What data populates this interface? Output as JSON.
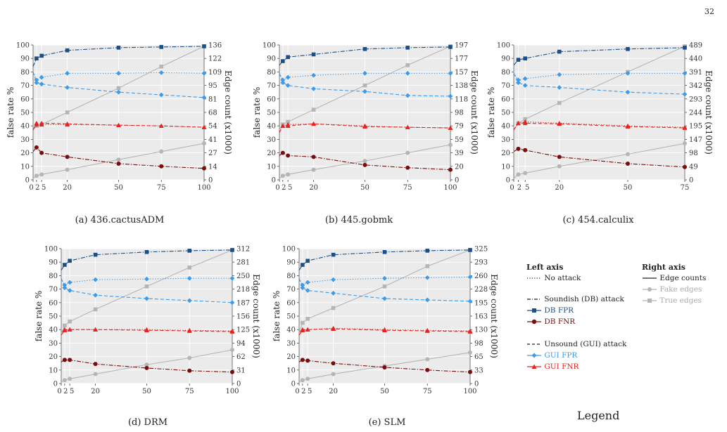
{
  "page_number": "32",
  "chart_data": [
    {
      "type": "line",
      "caption": "(a) 436.cactusADM",
      "x": [
        0,
        2,
        5,
        20,
        50,
        75,
        100
      ],
      "x_ticks": [
        "0",
        "2",
        "5",
        "20",
        "50",
        "75",
        "100"
      ],
      "xlim": [
        0,
        100
      ],
      "ylabel": "false rate %",
      "ylim": [
        0,
        100
      ],
      "y_ticks": [
        0,
        10,
        20,
        30,
        40,
        50,
        60,
        70,
        80,
        90,
        100
      ],
      "y2label": "Edge count (x1000)",
      "y2_max": 136,
      "y2_ticks": [
        "0",
        "14",
        "27",
        "41",
        "54",
        "68",
        "81",
        "95",
        "109",
        "122",
        "136"
      ],
      "series": [
        {
          "name": "DB FPR",
          "values": [
            84,
            90,
            92,
            96,
            98,
            98.5,
            99
          ]
        },
        {
          "name": "DB FNR",
          "values": [
            21,
            24,
            20,
            17,
            12,
            10,
            8.5
          ]
        },
        {
          "name": "GUI FPR",
          "values": [
            80,
            72,
            71,
            68.5,
            65,
            63,
            61
          ]
        },
        {
          "name": "GUI FNR",
          "values": [
            37,
            42,
            42,
            41.5,
            40.5,
            40,
            39
          ]
        },
        {
          "name": "No attack FPR",
          "values": [
            80,
            74,
            76,
            79,
            79,
            79.5,
            79
          ]
        },
        {
          "name": "No attack FNR",
          "values": [
            37,
            41,
            41,
            41,
            40.5,
            40,
            39
          ]
        },
        {
          "name": "Fake edges",
          "values": [
            1,
            3,
            4,
            7.5,
            15,
            21,
            27
          ]
        },
        {
          "name": "True edges",
          "values": [
            37,
            40,
            41,
            50,
            68,
            84,
            99
          ]
        }
      ]
    },
    {
      "type": "line",
      "caption": "(b) 445.gobmk",
      "x": [
        0,
        2,
        5,
        20,
        50,
        75,
        100
      ],
      "x_ticks": [
        "0",
        "2",
        "5",
        "20",
        "50",
        "75",
        "100"
      ],
      "xlim": [
        0,
        100
      ],
      "ylabel": "false rate %",
      "ylim": [
        0,
        100
      ],
      "y_ticks": [
        0,
        10,
        20,
        30,
        40,
        50,
        60,
        70,
        80,
        90,
        100
      ],
      "y2label": "Edge count (x1000)",
      "y2_max": 197,
      "y2_ticks": [
        "0",
        "20",
        "39",
        "59",
        "79",
        "98",
        "118",
        "138",
        "157",
        "177",
        "197"
      ],
      "series": [
        {
          "name": "DB FPR",
          "values": [
            85,
            88,
            91,
            93,
            97,
            98,
            98.5
          ]
        },
        {
          "name": "DB FNR",
          "values": [
            18,
            20,
            18,
            17,
            11,
            9,
            7.5
          ]
        },
        {
          "name": "GUI FPR",
          "values": [
            79,
            72,
            70,
            67.5,
            65.5,
            62.5,
            62
          ]
        },
        {
          "name": "GUI FNR",
          "values": [
            35,
            40,
            40,
            41.5,
            39.5,
            39,
            38.5
          ]
        },
        {
          "name": "No attack FPR",
          "values": [
            79,
            74,
            76,
            77.5,
            79,
            79,
            79
          ]
        },
        {
          "name": "No attack FNR",
          "values": [
            35,
            40,
            41,
            41.5,
            40,
            39,
            38.5
          ]
        },
        {
          "name": "Fake edges",
          "values": [
            1,
            3,
            4,
            7.5,
            14,
            20,
            26
          ]
        },
        {
          "name": "True edges",
          "values": [
            37,
            41,
            43,
            52,
            70,
            85,
            99
          ]
        }
      ]
    },
    {
      "type": "line",
      "caption": "(c) 454.calculix",
      "x": [
        0,
        2,
        5,
        20,
        50,
        75
      ],
      "x_ticks": [
        "0",
        "2",
        "5",
        "20",
        "50",
        "75"
      ],
      "xlim": [
        0,
        75
      ],
      "ylabel": "false rate %",
      "ylim": [
        0,
        100
      ],
      "y_ticks": [
        0,
        10,
        20,
        30,
        40,
        50,
        60,
        70,
        80,
        90,
        100
      ],
      "y2label": "Edge count (x1000)",
      "y2_max": 489,
      "y2_ticks": [
        "0",
        "49",
        "98",
        "147",
        "195",
        "244",
        "293",
        "342",
        "391",
        "440",
        "489"
      ],
      "series": [
        {
          "name": "DB FPR",
          "values": [
            85,
            89,
            90,
            95,
            97,
            98
          ]
        },
        {
          "name": "DB FNR",
          "values": [
            21,
            23,
            22,
            17,
            12,
            9.5
          ]
        },
        {
          "name": "GUI FPR",
          "values": [
            79,
            72,
            70,
            68.5,
            65,
            63.5
          ]
        },
        {
          "name": "GUI FNR",
          "values": [
            37,
            42,
            42,
            41.5,
            39.5,
            38.5
          ]
        },
        {
          "name": "No attack FPR",
          "values": [
            79,
            74,
            75,
            78,
            79,
            79
          ]
        },
        {
          "name": "No attack FNR",
          "values": [
            37,
            42,
            43,
            42,
            40,
            39
          ]
        },
        {
          "name": "Fake edges",
          "values": [
            1,
            4,
            5,
            10,
            19,
            27
          ]
        },
        {
          "name": "True edges",
          "values": [
            37,
            42,
            45,
            57,
            80,
            99
          ]
        }
      ]
    },
    {
      "type": "line",
      "caption": "(d) DRM",
      "x": [
        0,
        2,
        5,
        20,
        50,
        75,
        100
      ],
      "x_ticks": [
        "0",
        "2",
        "5",
        "20",
        "50",
        "75",
        "100"
      ],
      "xlim": [
        0,
        100
      ],
      "ylabel": "false rate %",
      "ylim": [
        0,
        100
      ],
      "y_ticks": [
        0,
        10,
        20,
        30,
        40,
        50,
        60,
        70,
        80,
        90,
        100
      ],
      "y2label": "Edge count (x1000)",
      "y2_max": 312,
      "y2_ticks": [
        "0",
        "31",
        "62",
        "94",
        "125",
        "156",
        "187",
        "218",
        "250",
        "281",
        "312"
      ],
      "series": [
        {
          "name": "DB FPR",
          "values": [
            84,
            88,
            91,
            95.5,
            97.5,
            98.5,
            99
          ]
        },
        {
          "name": "DB FNR",
          "values": [
            16,
            17.5,
            17.5,
            14.5,
            11.5,
            9.5,
            8.5
          ]
        },
        {
          "name": "GUI FPR",
          "values": [
            78,
            71,
            69,
            65.5,
            63,
            61.5,
            60
          ]
        },
        {
          "name": "GUI FNR",
          "values": [
            36,
            39.5,
            40,
            40,
            39.5,
            39,
            38.5
          ]
        },
        {
          "name": "No attack FPR",
          "values": [
            78,
            73,
            75,
            77,
            77.5,
            78,
            78
          ]
        },
        {
          "name": "No attack FNR",
          "values": [
            36,
            40,
            40,
            40,
            40,
            39.5,
            39
          ]
        },
        {
          "name": "Fake edges",
          "values": [
            1,
            2.5,
            3.5,
            7,
            14,
            19,
            25
          ]
        },
        {
          "name": "True edges",
          "values": [
            37,
            43,
            46,
            55,
            72,
            86,
            99
          ]
        }
      ]
    },
    {
      "type": "line",
      "caption": "(e) SLM",
      "x": [
        0,
        2,
        5,
        20,
        50,
        75,
        100
      ],
      "x_ticks": [
        "0",
        "2",
        "5",
        "20",
        "50",
        "75",
        "100"
      ],
      "xlim": [
        0,
        100
      ],
      "ylabel": "false rate %",
      "ylim": [
        0,
        100
      ],
      "y_ticks": [
        0,
        10,
        20,
        30,
        40,
        50,
        60,
        70,
        80,
        90,
        100
      ],
      "y2label": "Edge count (x1000)",
      "y2_max": 325,
      "y2_ticks": [
        "0",
        "33",
        "65",
        "98",
        "130",
        "163",
        "195",
        "228",
        "260",
        "293",
        "325"
      ],
      "series": [
        {
          "name": "DB FPR",
          "values": [
            84,
            88,
            91,
            95.5,
            97.5,
            98.5,
            99
          ]
        },
        {
          "name": "DB FNR",
          "values": [
            16,
            17.5,
            17,
            15,
            12,
            10,
            8.5
          ]
        },
        {
          "name": "GUI FPR",
          "values": [
            78,
            71,
            69,
            67,
            63,
            62,
            61
          ]
        },
        {
          "name": "GUI FNR",
          "values": [
            36,
            39.5,
            40,
            40.5,
            39.5,
            39,
            38.5
          ]
        },
        {
          "name": "No attack FPR",
          "values": [
            78,
            73,
            75,
            77,
            78,
            78.5,
            79
          ]
        },
        {
          "name": "No attack FNR",
          "values": [
            36,
            40,
            40,
            41,
            40,
            39.5,
            39
          ]
        },
        {
          "name": "Fake edges",
          "values": [
            1,
            2.5,
            3.5,
            7,
            13,
            18,
            23
          ]
        },
        {
          "name": "True edges",
          "values": [
            37,
            45,
            48,
            56,
            72,
            87,
            99
          ]
        }
      ]
    }
  ],
  "legend": {
    "title": "Legend",
    "left_header": "Left axis",
    "right_header": "Right axis",
    "no_attack": "No attack",
    "soundish": "Soundish (DB) attack",
    "db_fpr": "DB FPR",
    "db_fnr": "DB FNR",
    "unsound": "Unsound (GUI) attack",
    "gui_fpr": "GUI FPR",
    "gui_fnr": "GUI FNR",
    "edge_counts": "Edge counts",
    "fake_edges": "Fake edges",
    "true_edges": "True edges"
  },
  "colors": {
    "panel_bg": "#ebebeb",
    "grid": "#ffffff",
    "db_fpr": "#1a4f8a",
    "db_fnr": "#7a0c0c",
    "gui_fpr": "#3d9be9",
    "gui_fnr": "#e8221f",
    "edges": "#b5b5b5"
  }
}
